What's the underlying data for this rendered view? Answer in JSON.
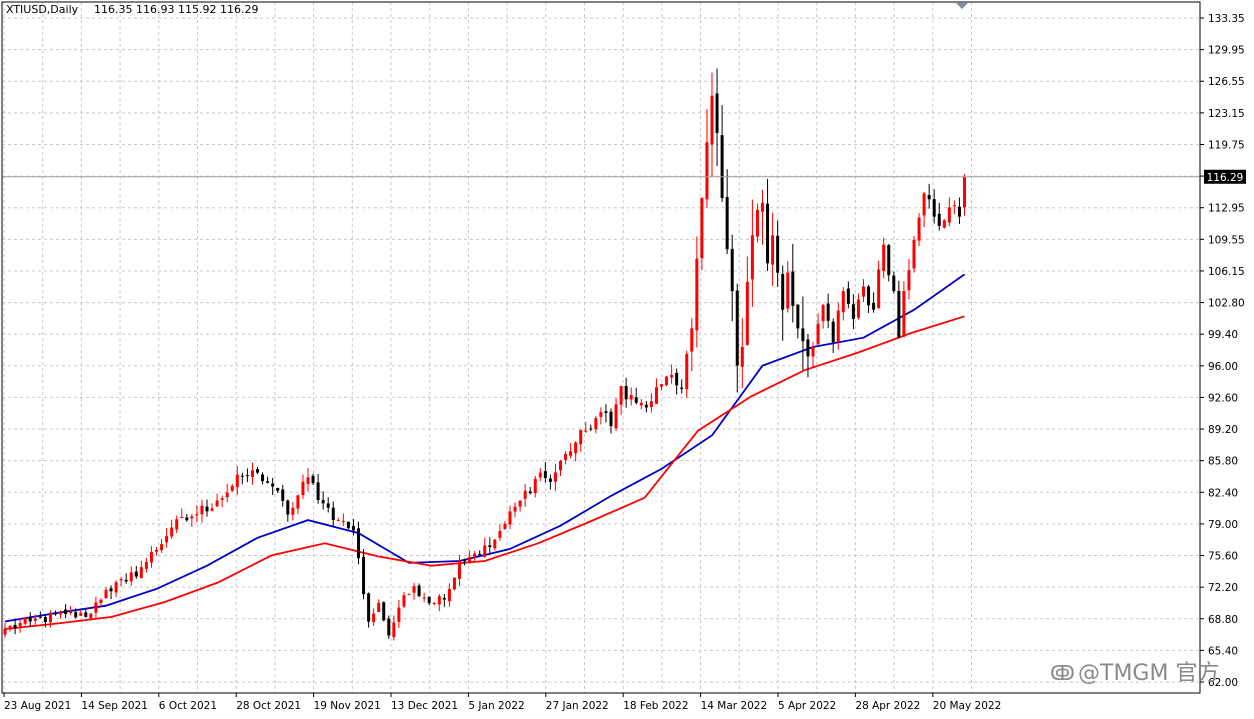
{
  "header": {
    "symbol": "XTIUSD,Daily",
    "ohlc": "116.35 116.93 115.92 116.29"
  },
  "price_label": "116.29",
  "watermark": "@TMGM 官方",
  "colors": {
    "bull": "#ff0000",
    "bear": "#000000",
    "ma_fast": "#0000c8",
    "ma_slow": "#ff0000",
    "grid": "#c8c8c8",
    "price_box": "#000000"
  },
  "chart_data": {
    "type": "candlestick",
    "title": "XTIUSD,Daily",
    "ylim": [
      62.0,
      135.0
    ],
    "y_ticks": [
      "133.35",
      "129.95",
      "126.55",
      "123.15",
      "119.75",
      "116.35",
      "112.95",
      "109.55",
      "106.15",
      "102.80",
      "99.40",
      "96.00",
      "92.60",
      "89.20",
      "85.80",
      "82.40",
      "79.00",
      "75.60",
      "72.20",
      "68.80",
      "65.40",
      "62.00"
    ],
    "x_ticks": [
      "23 Aug 2021",
      "14 Sep 2021",
      "6 Oct 2021",
      "28 Oct 2021",
      "19 Nov 2021",
      "13 Dec 2021",
      "5 Jan 2022",
      "27 Jan 2022",
      "18 Feb 2022",
      "14 Mar 2022",
      "5 Apr 2022",
      "28 Apr 2022",
      "20 May 2022"
    ],
    "last_price": 116.29,
    "grid": true,
    "close_anchors": [
      [
        0,
        67.7
      ],
      [
        5,
        68.5
      ],
      [
        12,
        69.3
      ],
      [
        16,
        69.0
      ],
      [
        20,
        71.9
      ],
      [
        24,
        72.8
      ],
      [
        28,
        74.9
      ],
      [
        33,
        78.6
      ],
      [
        37,
        79.8
      ],
      [
        42,
        81.5
      ],
      [
        47,
        84.1
      ],
      [
        50,
        84.5
      ],
      [
        53,
        83.0
      ],
      [
        56,
        80.0
      ],
      [
        60,
        84.0
      ],
      [
        63,
        81.2
      ],
      [
        66,
        79.4
      ],
      [
        69,
        78.3
      ],
      [
        72,
        68.5
      ],
      [
        74,
        70.5
      ],
      [
        76,
        67.0
      ],
      [
        78,
        70.0
      ],
      [
        81,
        72.3
      ],
      [
        85,
        70.5
      ],
      [
        88,
        72.0
      ],
      [
        90,
        75.0
      ],
      [
        93,
        75.8
      ],
      [
        96,
        76.5
      ],
      [
        99,
        79.0
      ],
      [
        102,
        81.5
      ],
      [
        106,
        84.5
      ],
      [
        108,
        83.5
      ],
      [
        111,
        86.5
      ],
      [
        115,
        89.0
      ],
      [
        118,
        91.0
      ],
      [
        120,
        89.5
      ],
      [
        122,
        93.8
      ],
      [
        125,
        92.0
      ],
      [
        127,
        91.5
      ],
      [
        130,
        94.0
      ],
      [
        132,
        95.0
      ],
      [
        134,
        93.5
      ],
      [
        136,
        100.0
      ],
      [
        137,
        107.5
      ],
      [
        138,
        114.0
      ],
      [
        139,
        120.0
      ],
      [
        140,
        125.0
      ],
      [
        141,
        121.0
      ],
      [
        142,
        114.0
      ],
      [
        143,
        108.5
      ],
      [
        144,
        104.0
      ],
      [
        145,
        96.0
      ],
      [
        146,
        98.0
      ],
      [
        147,
        105.0
      ],
      [
        148,
        110.0
      ],
      [
        150,
        113.5
      ],
      [
        151,
        107.0
      ],
      [
        152,
        110.0
      ],
      [
        154,
        102.0
      ],
      [
        155,
        106.0
      ],
      [
        157,
        100.0
      ],
      [
        159,
        97.0
      ],
      [
        160,
        98.0
      ],
      [
        161,
        100.5
      ],
      [
        162,
        102.5
      ],
      [
        164,
        98.5
      ],
      [
        166,
        104.0
      ],
      [
        168,
        101.0
      ],
      [
        170,
        104.5
      ],
      [
        172,
        102.0
      ],
      [
        174,
        109.0
      ],
      [
        176,
        104.0
      ],
      [
        177,
        99.0
      ],
      [
        178,
        104.0
      ],
      [
        180,
        109.5
      ],
      [
        182,
        114.5
      ],
      [
        184,
        112.0
      ],
      [
        185,
        111.0
      ],
      [
        187,
        113.0
      ],
      [
        189,
        112.0
      ],
      [
        190,
        116.29
      ]
    ],
    "series": [
      {
        "kind": "ma",
        "values": [
          68.5,
          69.4,
          70.2,
          72.0,
          74.5,
          77.5,
          79.4,
          78.0,
          74.8,
          75.0,
          76.3,
          78.8,
          82.0,
          84.9,
          88.5,
          96.0,
          98.0,
          99.0,
          102.0,
          105.8
        ]
      },
      {
        "kind": "ma",
        "values": [
          67.7,
          68.3,
          69.0,
          70.6,
          72.7,
          75.6,
          76.9,
          75.5,
          74.5,
          75.0,
          76.9,
          79.3,
          81.8,
          89.0,
          92.7,
          95.5,
          97.4,
          99.5,
          101.3
        ]
      }
    ]
  }
}
